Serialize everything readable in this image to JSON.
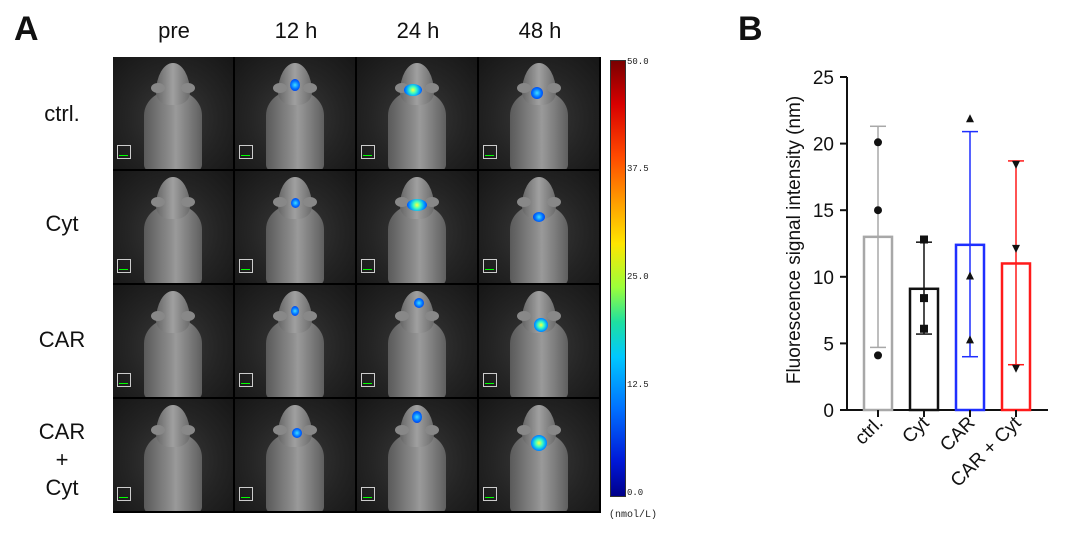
{
  "panel_a": {
    "label": "A",
    "time_labels": [
      "pre",
      "12 h",
      "24 h",
      "48 h"
    ],
    "row_labels": [
      "ctrl.",
      "Cyt",
      "CAR",
      "CAR\n+\nCyt"
    ],
    "colorbar": {
      "ticks": [
        "50.0",
        "37.5",
        "25.0",
        "12.5",
        "0.0"
      ],
      "unit": "(nmol/L)"
    }
  },
  "panel_b": {
    "label": "B"
  },
  "chart_data": {
    "type": "bar",
    "title": "",
    "xlabel": "",
    "ylabel": "Fluorescence signal intensity (nm)",
    "ylim": [
      0,
      25
    ],
    "yticks": [
      0,
      5,
      10,
      15,
      20,
      25
    ],
    "categories": [
      "ctrl.",
      "Cyt",
      "CAR",
      "CAR + Cyt"
    ],
    "values": [
      13.0,
      9.1,
      12.4,
      11.0
    ],
    "error_upper": [
      21.3,
      12.6,
      20.9,
      18.7
    ],
    "error_lower": [
      4.7,
      5.7,
      4.0,
      3.4
    ],
    "points": [
      [
        20.1,
        15.0,
        4.1
      ],
      [
        12.8,
        8.4,
        6.1
      ],
      [
        21.9,
        10.1,
        5.3
      ],
      [
        18.4,
        12.1,
        3.1
      ]
    ],
    "markers": [
      "circle",
      "square",
      "triangle",
      "inverted-triangle"
    ],
    "colors": [
      "#a8a8a8",
      "#111111",
      "#1f2fff",
      "#ff1a1a"
    ]
  }
}
